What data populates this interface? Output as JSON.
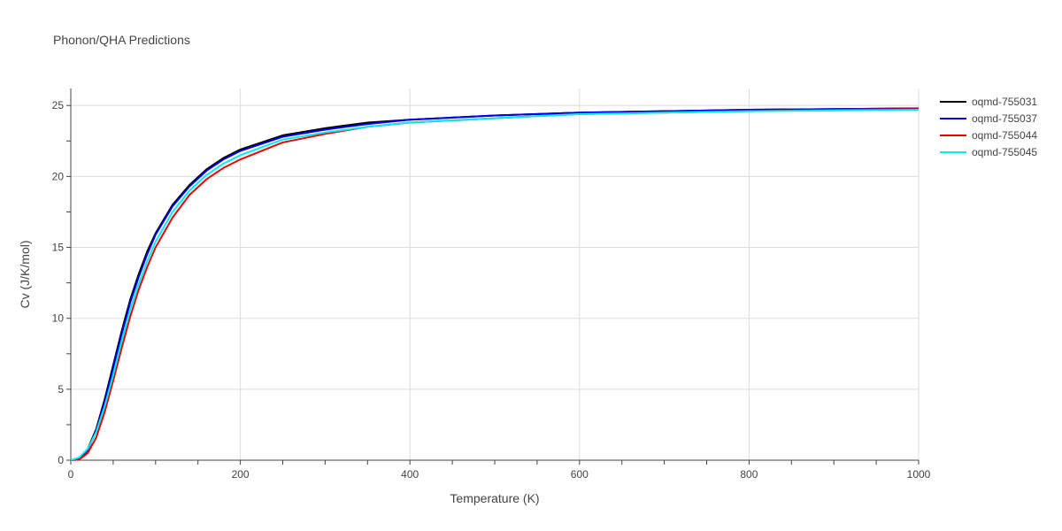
{
  "chart_data": {
    "type": "line",
    "title": "Phonon/QHA Predictions",
    "xlabel": "Temperature (K)",
    "ylabel": "Cv (J/K/mol)",
    "xlim": [
      0,
      1000
    ],
    "ylim": [
      0,
      26.2
    ],
    "xticks": [
      0,
      200,
      400,
      600,
      800,
      1000
    ],
    "yticks": [
      0,
      5,
      10,
      15,
      20,
      25
    ],
    "grid": true,
    "legend_position": "top-right",
    "series": [
      {
        "name": "oqmd-755031",
        "color": "#000000",
        "points": [
          [
            0,
            0
          ],
          [
            10,
            0.1
          ],
          [
            20,
            0.8
          ],
          [
            30,
            2.2
          ],
          [
            40,
            4.3
          ],
          [
            50,
            6.7
          ],
          [
            60,
            9.1
          ],
          [
            70,
            11.3
          ],
          [
            80,
            13.1
          ],
          [
            90,
            14.7
          ],
          [
            100,
            16.0
          ],
          [
            120,
            18.0
          ],
          [
            140,
            19.4
          ],
          [
            160,
            20.5
          ],
          [
            180,
            21.3
          ],
          [
            200,
            21.9
          ],
          [
            250,
            22.9
          ],
          [
            300,
            23.4
          ],
          [
            350,
            23.8
          ],
          [
            400,
            24.0
          ],
          [
            500,
            24.3
          ],
          [
            600,
            24.5
          ],
          [
            700,
            24.6
          ],
          [
            800,
            24.7
          ],
          [
            900,
            24.75
          ],
          [
            1000,
            24.8
          ]
        ]
      },
      {
        "name": "oqmd-755037",
        "color": "#0000ee",
        "points": [
          [
            0,
            0
          ],
          [
            10,
            0.1
          ],
          [
            20,
            0.7
          ],
          [
            30,
            2.1
          ],
          [
            40,
            4.1
          ],
          [
            50,
            6.5
          ],
          [
            60,
            8.9
          ],
          [
            70,
            11.1
          ],
          [
            80,
            12.9
          ],
          [
            90,
            14.5
          ],
          [
            100,
            15.9
          ],
          [
            120,
            17.9
          ],
          [
            140,
            19.3
          ],
          [
            160,
            20.4
          ],
          [
            180,
            21.2
          ],
          [
            200,
            21.8
          ],
          [
            250,
            22.8
          ],
          [
            300,
            23.3
          ],
          [
            350,
            23.7
          ],
          [
            400,
            24.0
          ],
          [
            500,
            24.3
          ],
          [
            600,
            24.5
          ],
          [
            700,
            24.6
          ],
          [
            800,
            24.7
          ],
          [
            900,
            24.75
          ],
          [
            1000,
            24.8
          ]
        ]
      },
      {
        "name": "oqmd-755044",
        "color": "#ee0000",
        "points": [
          [
            0,
            0
          ],
          [
            10,
            0.05
          ],
          [
            20,
            0.5
          ],
          [
            30,
            1.6
          ],
          [
            40,
            3.4
          ],
          [
            50,
            5.6
          ],
          [
            60,
            7.9
          ],
          [
            70,
            10.1
          ],
          [
            80,
            12.0
          ],
          [
            90,
            13.6
          ],
          [
            100,
            15.0
          ],
          [
            120,
            17.1
          ],
          [
            140,
            18.7
          ],
          [
            160,
            19.8
          ],
          [
            180,
            20.6
          ],
          [
            200,
            21.2
          ],
          [
            250,
            22.4
          ],
          [
            300,
            23.0
          ],
          [
            350,
            23.5
          ],
          [
            400,
            23.8
          ],
          [
            500,
            24.1
          ],
          [
            600,
            24.4
          ],
          [
            700,
            24.5
          ],
          [
            800,
            24.6
          ],
          [
            900,
            24.7
          ],
          [
            1000,
            24.75
          ]
        ]
      },
      {
        "name": "oqmd-755045",
        "color": "#00eeee",
        "points": [
          [
            0,
            0
          ],
          [
            10,
            0.2
          ],
          [
            20,
            0.8
          ],
          [
            30,
            2.0
          ],
          [
            40,
            3.8
          ],
          [
            50,
            6.0
          ],
          [
            60,
            8.4
          ],
          [
            70,
            10.6
          ],
          [
            80,
            12.4
          ],
          [
            90,
            14.0
          ],
          [
            100,
            15.4
          ],
          [
            120,
            17.5
          ],
          [
            140,
            19.0
          ],
          [
            160,
            20.1
          ],
          [
            180,
            20.9
          ],
          [
            200,
            21.5
          ],
          [
            250,
            22.6
          ],
          [
            300,
            23.1
          ],
          [
            350,
            23.5
          ],
          [
            400,
            23.8
          ],
          [
            500,
            24.1
          ],
          [
            600,
            24.4
          ],
          [
            700,
            24.5
          ],
          [
            800,
            24.6
          ],
          [
            900,
            24.65
          ],
          [
            1000,
            24.7
          ]
        ]
      }
    ]
  }
}
